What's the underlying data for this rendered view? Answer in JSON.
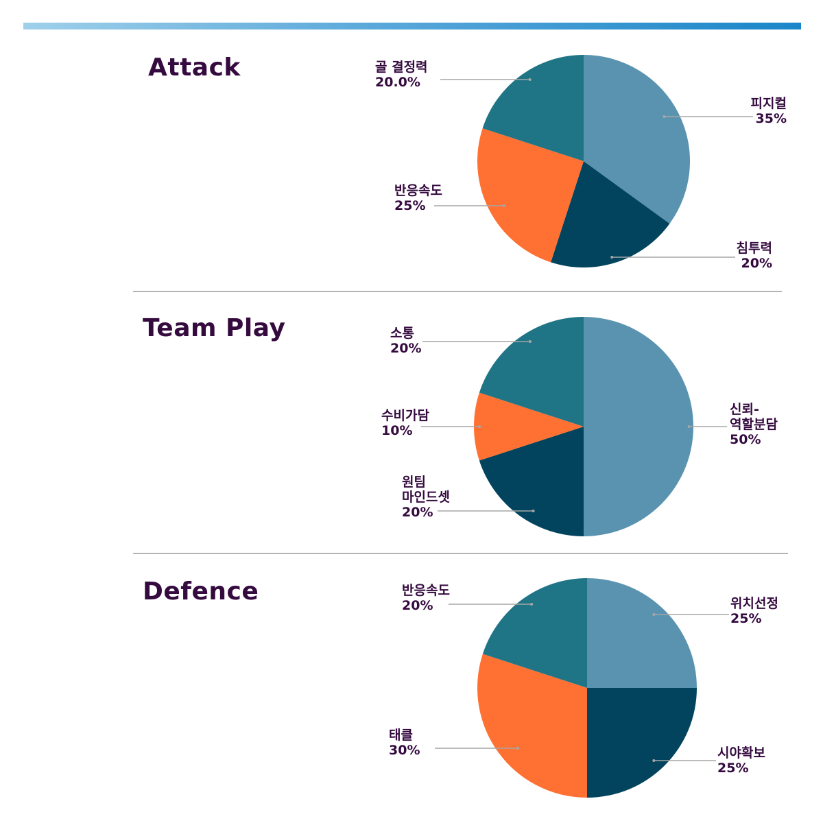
{
  "colors": {
    "title": "#340a3f",
    "divider": "#b3b3b3",
    "leader": "#a6a6a6",
    "slice_colors": [
      "#5a93b0",
      "#02445e",
      "#ff7033",
      "#1f7585"
    ]
  },
  "sections": [
    {
      "title": "Attack"
    },
    {
      "title": "Team Play"
    },
    {
      "title": "Defence"
    }
  ],
  "chart_data": [
    {
      "type": "pie",
      "title": "Attack",
      "slices": [
        {
          "label_lines": [
            "피지컬"
          ],
          "value_text": "35%",
          "value": 35
        },
        {
          "label_lines": [
            "침투력"
          ],
          "value_text": "20%",
          "value": 20
        },
        {
          "label_lines": [
            "반응속도"
          ],
          "value_text": "25%",
          "value": 25
        },
        {
          "label_lines": [
            "골 결정력"
          ],
          "value_text": "20.0%",
          "value": 20
        }
      ]
    },
    {
      "type": "pie",
      "title": "Team Play",
      "slices": [
        {
          "label_lines": [
            "신뢰-",
            "역할분담"
          ],
          "value_text": "50%",
          "value": 50
        },
        {
          "label_lines": [
            "원팀",
            "마인드셋"
          ],
          "value_text": "20%",
          "value": 20
        },
        {
          "label_lines": [
            "수비가담"
          ],
          "value_text": "10%",
          "value": 10
        },
        {
          "label_lines": [
            "소통"
          ],
          "value_text": "20%",
          "value": 20
        }
      ]
    },
    {
      "type": "pie",
      "title": "Defence",
      "slices": [
        {
          "label_lines": [
            "위치선정"
          ],
          "value_text": "25%",
          "value": 25
        },
        {
          "label_lines": [
            "시야확보"
          ],
          "value_text": "25%",
          "value": 25
        },
        {
          "label_lines": [
            "태클"
          ],
          "value_text": "30%",
          "value": 30
        },
        {
          "label_lines": [
            "반응속도"
          ],
          "value_text": "20%",
          "value": 20
        }
      ]
    }
  ]
}
